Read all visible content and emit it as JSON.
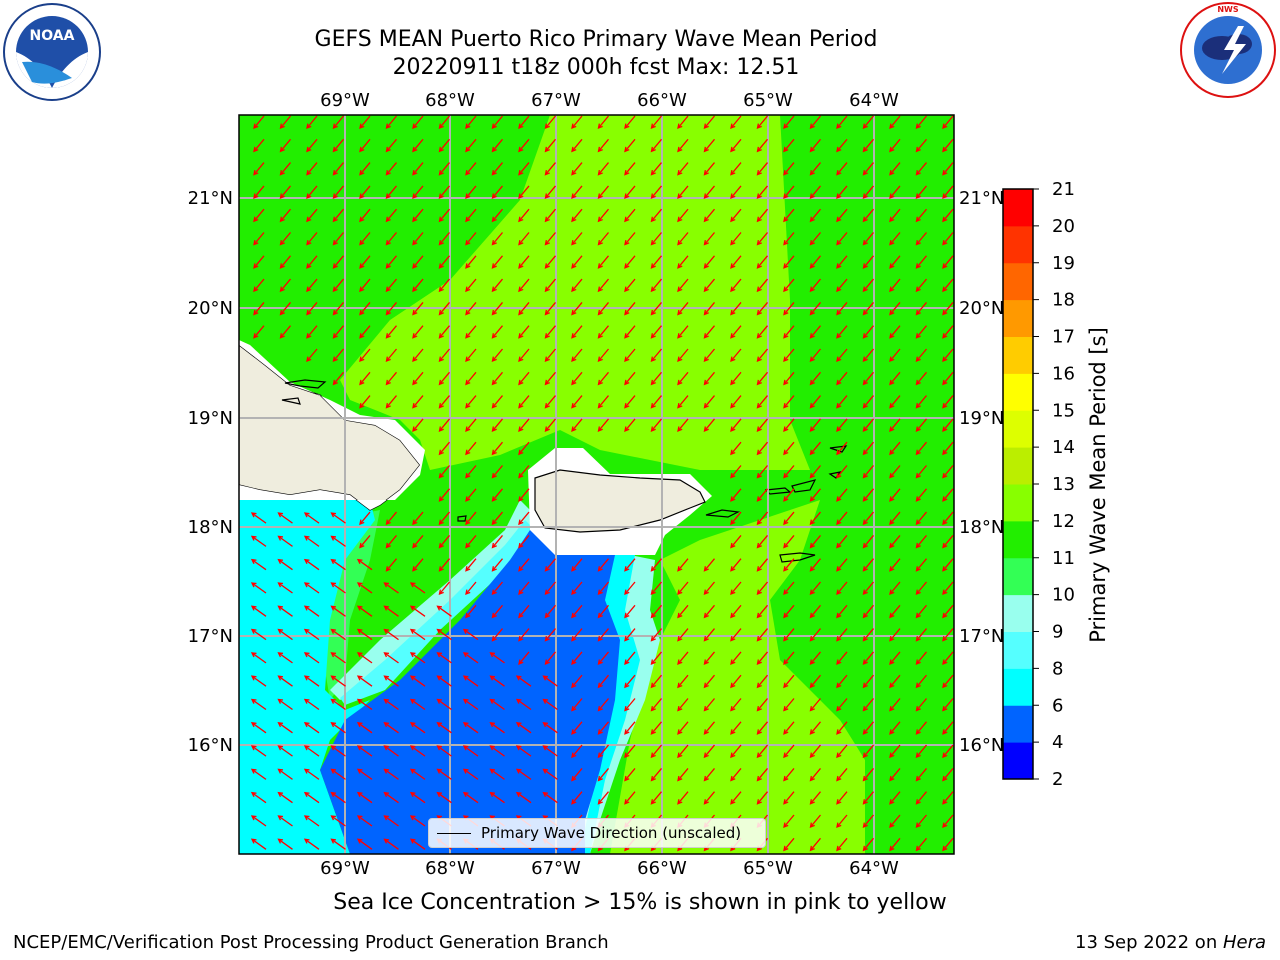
{
  "header": {
    "title_line1": "GEFS MEAN Puerto Rico Primary Wave Mean Period",
    "title_line2": "20220911 t18z 000h fcst   Max: 12.51"
  },
  "logos": {
    "noaa": {
      "text": "NOAA",
      "ring_text": "NATIONAL OCEANIC AND ATMOSPHERIC ADMINISTRATION",
      "ring_text_bottom": "U.S. DEPARTMENT OF COMMERCE"
    },
    "nws": {
      "ring_text": "NATIONAL WEATHER SERVICE"
    }
  },
  "map": {
    "lon_labels": [
      "69°W",
      "68°W",
      "67°W",
      "66°W",
      "65°W",
      "64°W"
    ],
    "lat_labels": [
      "21°N",
      "20°N",
      "19°N",
      "18°N",
      "17°N",
      "16°N"
    ],
    "legend_label": "Primary Wave Direction (unscaled)",
    "arrow_color": "#ff0000"
  },
  "colorbar": {
    "title": "Primary Wave Mean Period [s]",
    "ticks": [
      "2",
      "4",
      "6",
      "8",
      "9",
      "10",
      "11",
      "12",
      "13",
      "14",
      "15",
      "16",
      "17",
      "18",
      "19",
      "20",
      "21"
    ],
    "colors": [
      "#0000ff",
      "#0064ff",
      "#00ffff",
      "#55ffff",
      "#99ffee",
      "#33ff55",
      "#22ee00",
      "#88ff00",
      "#bbee00",
      "#ddff00",
      "#ffff00",
      "#ffcc00",
      "#ff9900",
      "#ff6600",
      "#ff3300",
      "#ff0000"
    ]
  },
  "bottom_note": "Sea Ice Concentration > 15% is shown in pink to yellow",
  "footer": {
    "left": "NCEP/EMC/Verification Post Processing Product Generation Branch",
    "right_date": "13 Sep 2022 on ",
    "right_machine": "Hera"
  }
}
